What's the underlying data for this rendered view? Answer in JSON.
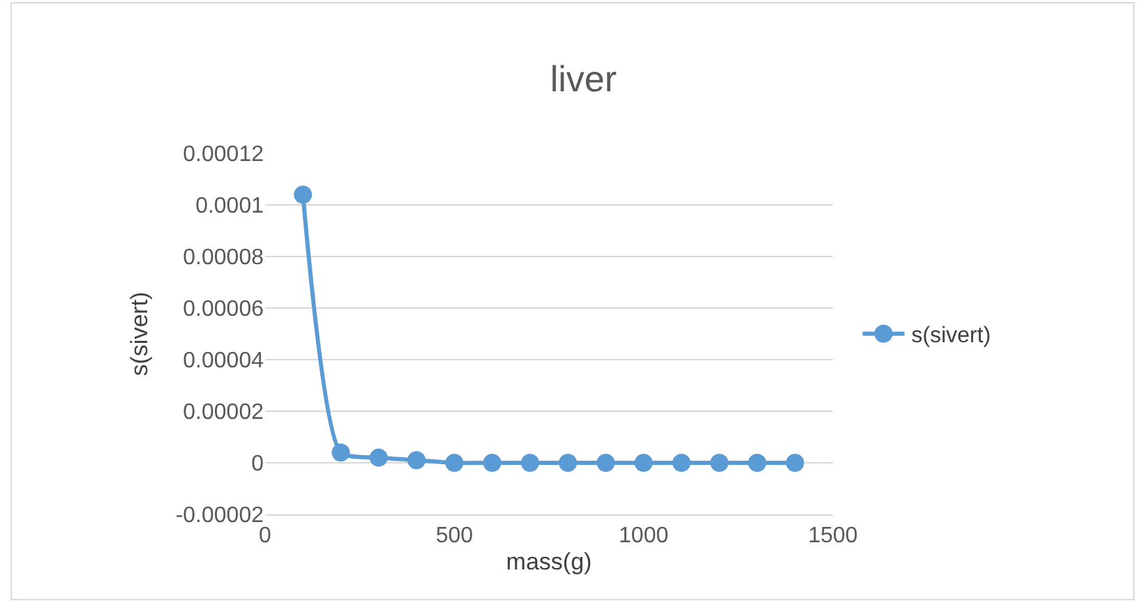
{
  "chart_data": {
    "type": "line",
    "title": "liver",
    "xlabel": "mass(g)",
    "ylabel": "s(sivert)",
    "x": [
      100,
      200,
      300,
      400,
      500,
      600,
      700,
      800,
      900,
      1000,
      1100,
      1200,
      1300,
      1400
    ],
    "series": [
      {
        "name": "s(sivert)",
        "color": "#5b9bd5",
        "values": [
          0.000104,
          4e-06,
          2e-06,
          1e-06,
          0,
          0,
          0,
          0,
          0,
          0,
          0,
          0,
          0,
          0
        ]
      }
    ],
    "xlim": [
      0,
      1500
    ],
    "xticks": [
      0,
      500,
      1000,
      1500
    ],
    "ylim": [
      -2e-05,
      0.00012
    ],
    "yticks": [
      {
        "value": -2e-05,
        "label": "-0.00002"
      },
      {
        "value": 0,
        "label": "0"
      },
      {
        "value": 2e-05,
        "label": "0.00002"
      },
      {
        "value": 4e-05,
        "label": "0.00004"
      },
      {
        "value": 6e-05,
        "label": "0.00006"
      },
      {
        "value": 8e-05,
        "label": "0.00008"
      },
      {
        "value": 0.0001,
        "label": "0.0001"
      },
      {
        "value": 0.00012,
        "label": "0.00012"
      }
    ],
    "grid": "y",
    "legend": "right",
    "marker": "circle",
    "line_style": "solid"
  }
}
